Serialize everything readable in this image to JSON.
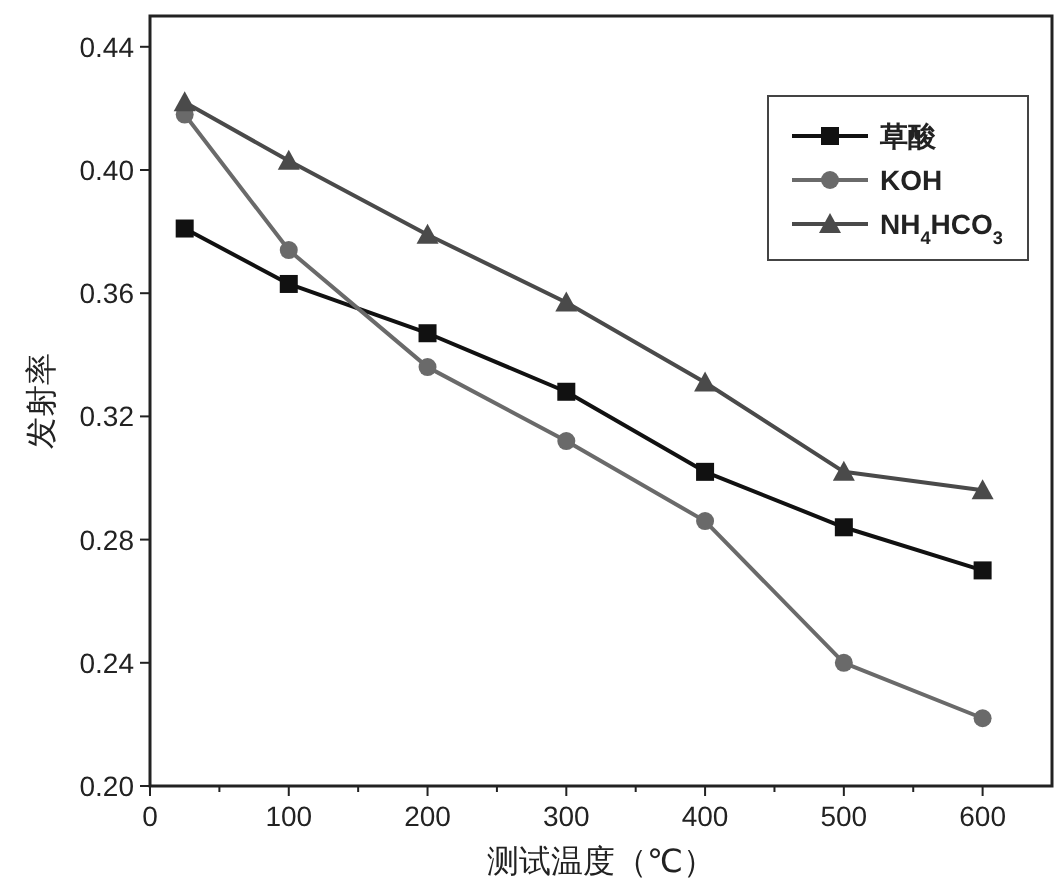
{
  "chart_data": {
    "type": "line",
    "xlabel": "测试温度（℃）",
    "ylabel": "发射率",
    "x": [
      25,
      100,
      200,
      300,
      400,
      500,
      600
    ],
    "series": [
      {
        "name": "草酸",
        "color": "#111111",
        "marker": "square",
        "values": [
          0.381,
          0.363,
          0.347,
          0.328,
          0.302,
          0.284,
          0.27
        ]
      },
      {
        "name": "KOH",
        "color": "#6a6a6a",
        "marker": "circle",
        "values": [
          0.418,
          0.374,
          0.336,
          0.312,
          0.286,
          0.24,
          0.222
        ]
      },
      {
        "name": "NH$_{4}$HCO$_{3}$",
        "color": "#4a4a4a",
        "marker": "triangle",
        "values": [
          0.422,
          0.403,
          0.379,
          0.357,
          0.331,
          0.302,
          0.296
        ]
      }
    ],
    "xlim": [
      0,
      650
    ],
    "xticks": [
      0,
      {
        "value": 50,
        "label": null
      },
      100,
      {
        "value": 150,
        "label": null
      },
      200,
      {
        "value": 250,
        "label": null
      },
      300,
      {
        "value": 350,
        "label": null
      },
      400,
      {
        "value": 450,
        "label": null
      },
      500,
      {
        "value": 550,
        "label": null
      },
      600
    ],
    "ylim": [
      0.2,
      0.45
    ],
    "yticks": [
      {
        "value": 0.2,
        "label": "0.20"
      },
      0.24,
      0.28,
      0.32,
      0.36,
      {
        "value": 0.4,
        "label": "0.40"
      },
      0.44
    ],
    "grid": false,
    "legend": "top right",
    "line_style": "solid"
  }
}
